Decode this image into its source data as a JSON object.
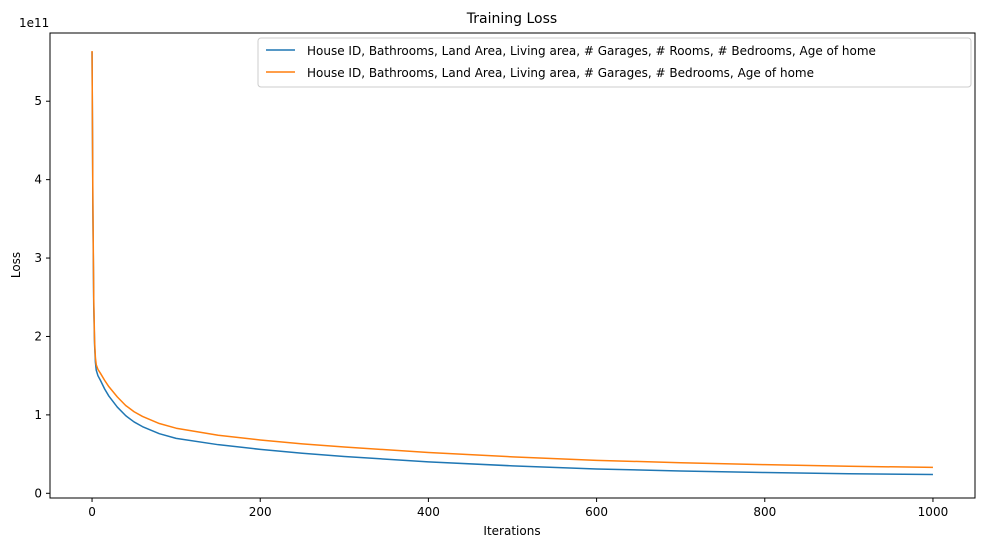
{
  "chart_data": {
    "type": "line",
    "title": "Training Loss",
    "xlabel": "Iterations",
    "ylabel": "Loss",
    "y_offset_label": "1e11",
    "xlim": [
      -50,
      1050
    ],
    "ylim": [
      -6000000000.0,
      587000000000.0
    ],
    "xticks": [
      0,
      200,
      400,
      600,
      800,
      1000
    ],
    "xtick_labels": [
      "0",
      "200",
      "400",
      "600",
      "800",
      "1000"
    ],
    "yticks": [
      0,
      100000000000.0,
      200000000000.0,
      300000000000.0,
      400000000000.0,
      500000000000.0
    ],
    "ytick_labels": [
      "0",
      "1",
      "2",
      "3",
      "4",
      "5"
    ],
    "legend_placement": "top-right",
    "grid": false,
    "series": [
      {
        "name": "House ID, Bathrooms, Land Area, Living area, # Garages, # Rooms, # Bedrooms, Age of home",
        "color": "#1f77b4",
        "x": [
          0,
          1,
          2,
          3,
          4,
          5,
          7,
          10,
          15,
          20,
          30,
          40,
          50,
          60,
          80,
          100,
          150,
          200,
          250,
          300,
          400,
          500,
          600,
          700,
          800,
          900,
          1000
        ],
        "y": [
          563000000000.0,
          360000000000.0,
          240000000000.0,
          190000000000.0,
          167000000000.0,
          157000000000.0,
          150000000000.0,
          144000000000.0,
          133000000000.0,
          124000000000.0,
          110000000000.0,
          99000000000.0,
          91000000000.0,
          85000000000.0,
          76000000000.0,
          70000000000.0,
          62000000000.0,
          56000000000.0,
          51000000000.0,
          47000000000.0,
          40000000000.0,
          35000000000.0,
          31000000000.0,
          28500000000.0,
          26500000000.0,
          25000000000.0,
          24000000000.0
        ]
      },
      {
        "name": "House ID, Bathrooms, Land Area, Living area, # Garages, # Bedrooms, Age of home",
        "color": "#ff7f0e",
        "x": [
          0,
          1,
          2,
          3,
          4,
          5,
          7,
          10,
          15,
          20,
          30,
          40,
          50,
          60,
          80,
          100,
          150,
          200,
          250,
          300,
          400,
          500,
          600,
          700,
          800,
          900,
          1000
        ],
        "y": [
          564000000000.0,
          370000000000.0,
          250000000000.0,
          195000000000.0,
          173000000000.0,
          164000000000.0,
          158000000000.0,
          153000000000.0,
          144000000000.0,
          136000000000.0,
          123000000000.0,
          112000000000.0,
          104000000000.0,
          98000000000.0,
          89000000000.0,
          83000000000.0,
          74000000000.0,
          68000000000.0,
          63000000000.0,
          59000000000.0,
          52000000000.0,
          46500000000.0,
          42000000000.0,
          39000000000.0,
          36500000000.0,
          34500000000.0,
          33000000000.0
        ]
      }
    ]
  }
}
